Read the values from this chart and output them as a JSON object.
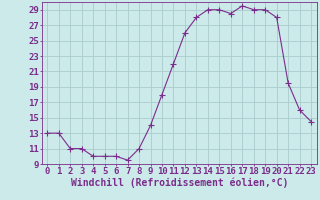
{
  "hours": [
    0,
    1,
    2,
    3,
    4,
    5,
    6,
    7,
    8,
    9,
    10,
    11,
    12,
    13,
    14,
    15,
    16,
    17,
    18,
    19,
    20,
    21,
    22,
    23
  ],
  "values": [
    13,
    13,
    11,
    11,
    10,
    10,
    10,
    9.5,
    11,
    14,
    18,
    22,
    26,
    28,
    29,
    29,
    28.5,
    29.5,
    29,
    29,
    28,
    19.5,
    16,
    14.5
  ],
  "line_color": "#7b2d8b",
  "marker": "+",
  "marker_size": 4,
  "bg_color": "#cceaea",
  "grid_color": "#aacccc",
  "xlabel": "Windchill (Refroidissement éolien,°C)",
  "ylim": [
    9,
    30
  ],
  "xlim": [
    -0.5,
    23.5
  ],
  "yticks": [
    9,
    11,
    13,
    15,
    17,
    19,
    21,
    23,
    25,
    27,
    29
  ],
  "xticks": [
    0,
    1,
    2,
    3,
    4,
    5,
    6,
    7,
    8,
    9,
    10,
    11,
    12,
    13,
    14,
    15,
    16,
    17,
    18,
    19,
    20,
    21,
    22,
    23
  ],
  "tick_color": "#7b2d8b",
  "label_color": "#7b2d8b",
  "axis_color": "#7b2d8b",
  "font_size": 6.5
}
